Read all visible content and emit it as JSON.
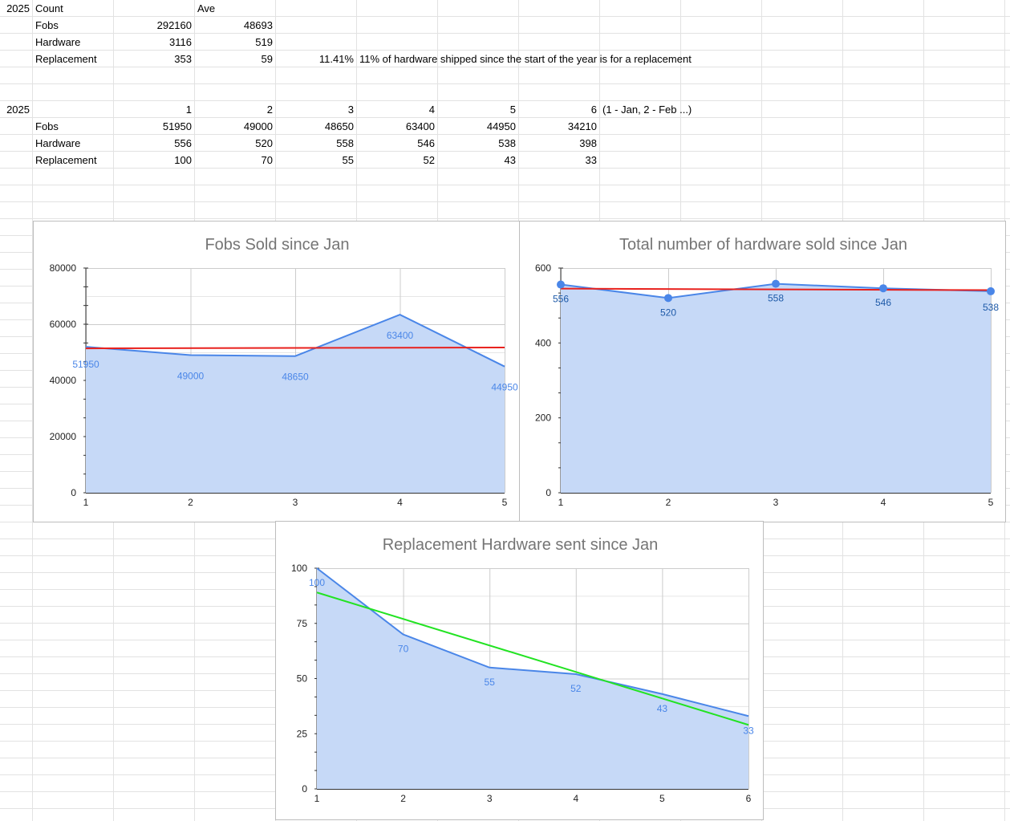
{
  "sheet": {
    "summary": {
      "year": "2025",
      "header_count": "Count",
      "header_ave": "Ave",
      "rows": [
        {
          "label": "Fobs",
          "count": "292160",
          "ave": "48693"
        },
        {
          "label": "Hardware",
          "count": "3116",
          "ave": "519"
        },
        {
          "label": "Replacement",
          "count": "353",
          "ave": "59",
          "pct": "11.41%",
          "note": "11% of hardware shipped since the start of the year is for a replacement"
        }
      ]
    },
    "monthly": {
      "year": "2025",
      "months": [
        "1",
        "2",
        "3",
        "4",
        "5",
        "6"
      ],
      "months_note": "(1 - Jan, 2 - Feb ...)",
      "rows": [
        {
          "label": "Fobs",
          "values": [
            "51950",
            "49000",
            "48650",
            "63400",
            "44950",
            "34210"
          ]
        },
        {
          "label": "Hardware",
          "values": [
            "556",
            "520",
            "558",
            "546",
            "538",
            "398"
          ]
        },
        {
          "label": "Replacement",
          "values": [
            "100",
            "70",
            "55",
            "52",
            "43",
            "33"
          ]
        }
      ]
    }
  },
  "colors": {
    "series_line": "#4a86e8",
    "series_fill": "#c6d9f7",
    "average_line": "#e8211d",
    "trend_line": "#22e322",
    "grid": "#cccccc",
    "title": "#757575"
  },
  "chart_data": [
    {
      "id": "fobs",
      "type": "area",
      "title": "Fobs Sold since Jan",
      "x": [
        1,
        2,
        3,
        4,
        5
      ],
      "series": [
        {
          "values": [
            51950,
            49000,
            48650,
            63400,
            44950
          ]
        }
      ],
      "reference_line": {
        "style": "average",
        "color": "#e8211d",
        "from": 51400,
        "to": 51700
      },
      "data_labels": true,
      "markers": false,
      "xlim": [
        1,
        5
      ],
      "ylim": [
        0,
        80000
      ],
      "yticks": [
        0,
        20000,
        40000,
        60000,
        80000
      ],
      "xticks": [
        1,
        2,
        3,
        4,
        5
      ],
      "grid": true
    },
    {
      "id": "hardware",
      "type": "area",
      "title": "Total number of hardware sold since Jan",
      "x": [
        1,
        2,
        3,
        4,
        5
      ],
      "series": [
        {
          "values": [
            556,
            520,
            558,
            546,
            538
          ]
        }
      ],
      "reference_line": {
        "style": "average",
        "color": "#e8211d",
        "from": 545,
        "to": 541
      },
      "data_labels": true,
      "markers": true,
      "xlim": [
        1,
        5
      ],
      "ylim": [
        0,
        600
      ],
      "yticks": [
        0,
        200,
        400,
        600
      ],
      "xticks": [
        1,
        2,
        3,
        4,
        5
      ],
      "grid": true
    },
    {
      "id": "replacement",
      "type": "area",
      "title": "Replacement Hardware sent since Jan",
      "x": [
        1,
        2,
        3,
        4,
        5,
        6
      ],
      "series": [
        {
          "values": [
            100,
            70,
            55,
            52,
            43,
            33
          ]
        }
      ],
      "reference_line": {
        "style": "linear trendline",
        "color": "#22e322",
        "from": 89,
        "to": 29
      },
      "data_labels": true,
      "markers": false,
      "xlim": [
        1,
        6
      ],
      "ylim": [
        0,
        100
      ],
      "yticks": [
        0,
        25,
        50,
        75,
        100
      ],
      "xticks": [
        1,
        2,
        3,
        4,
        5,
        6
      ],
      "grid": true
    }
  ]
}
